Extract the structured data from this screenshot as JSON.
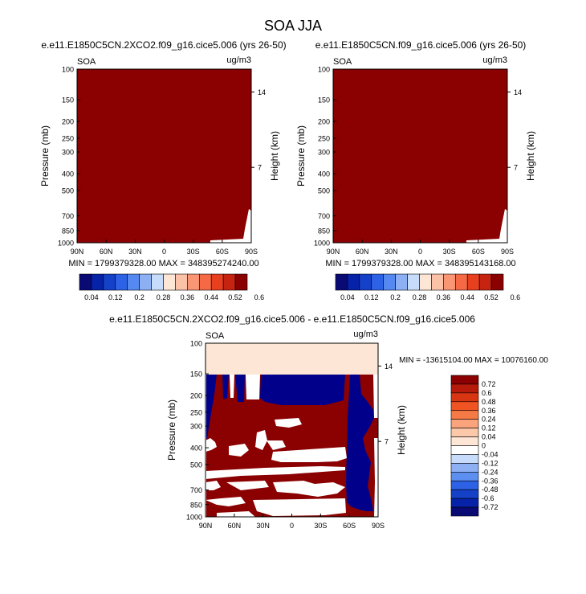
{
  "figure_title": "SOA JJA",
  "colors": {
    "dark_red": "#8b0000",
    "dark_blue": "#00008b",
    "white": "#ffffff",
    "peach": "#fde6d5"
  },
  "chart_data": [
    {
      "type": "heatmap",
      "title": "e.e11.E1850C5CN.2XCO2.f09_g16.cice5.006 (yrs 26-50)",
      "left_label": "SOA",
      "right_label": "ug/m3",
      "ylabel": "Pressure (mb)",
      "ylabel_right": "Height (km)",
      "xticks": [
        "90N",
        "60N",
        "30N",
        "0",
        "30S",
        "60S",
        "90S"
      ],
      "yticks": [
        "100",
        "150",
        "200",
        "250",
        "300",
        "400",
        "500",
        "700",
        "850",
        "1000"
      ],
      "yticks_right": [
        "14",
        "7"
      ],
      "stats": "MIN = 1799379328.00   MAX = 348395274240.00",
      "colorbar_labels": [
        "0.04",
        "0.12",
        "0.2",
        "0.28",
        "0.36",
        "0.44",
        "0.52",
        "0.6"
      ],
      "field_summary": "Entire field above 0.64 (darkest red) except a small region near 90S, 700-1000 mb"
    },
    {
      "type": "heatmap",
      "title": "e.e11.E1850C5CN.f09_g16.cice5.006 (yrs 26-50)",
      "left_label": "SOA",
      "right_label": "ug/m3",
      "ylabel": "Pressure (mb)",
      "ylabel_right": "Height (km)",
      "xticks": [
        "90N",
        "60N",
        "30N",
        "0",
        "30S",
        "60S",
        "90S"
      ],
      "yticks": [
        "100",
        "150",
        "200",
        "250",
        "300",
        "400",
        "500",
        "700",
        "850",
        "1000"
      ],
      "yticks_right": [
        "14",
        "7"
      ],
      "stats": "MIN = 1799379328.00   MAX = 348395143168.00",
      "colorbar_labels": [
        "0.04",
        "0.12",
        "0.2",
        "0.28",
        "0.36",
        "0.44",
        "0.52",
        "0.6"
      ],
      "field_summary": "Entire field above 0.64 (darkest red) except a small region near 90S, 700-1000 mb"
    },
    {
      "type": "heatmap",
      "title": "e.e11.E1850C5CN.2XCO2.f09_g16.cice5.006 - e.e11.E1850C5CN.f09_g16.cice5.006",
      "left_label": "SOA",
      "right_label": "ug/m3",
      "ylabel": "Pressure (mb)",
      "ylabel_right": "Height (km)",
      "xticks": [
        "90N",
        "60N",
        "30N",
        "0",
        "30S",
        "60S",
        "90S"
      ],
      "yticks": [
        "100",
        "150",
        "200",
        "250",
        "300",
        "400",
        "500",
        "700",
        "850",
        "1000"
      ],
      "yticks_right": [
        "14",
        "7"
      ],
      "stats": "MIN = -13615104.00   MAX = 10076160.00",
      "colorbar_labels": [
        "0.72",
        "0.6",
        "0.48",
        "0.36",
        "0.24",
        "0.12",
        "0.04",
        "0",
        "-0.04",
        "-0.12",
        "-0.24",
        "-0.36",
        "-0.48",
        "-0.6",
        "-0.72"
      ],
      "field_summary": "100-150 mb band in lightest positive color (0-0.04); below 150 mb a mix of strong positive (above 0.72), strong negative (below -0.72) and near-zero regions"
    }
  ]
}
